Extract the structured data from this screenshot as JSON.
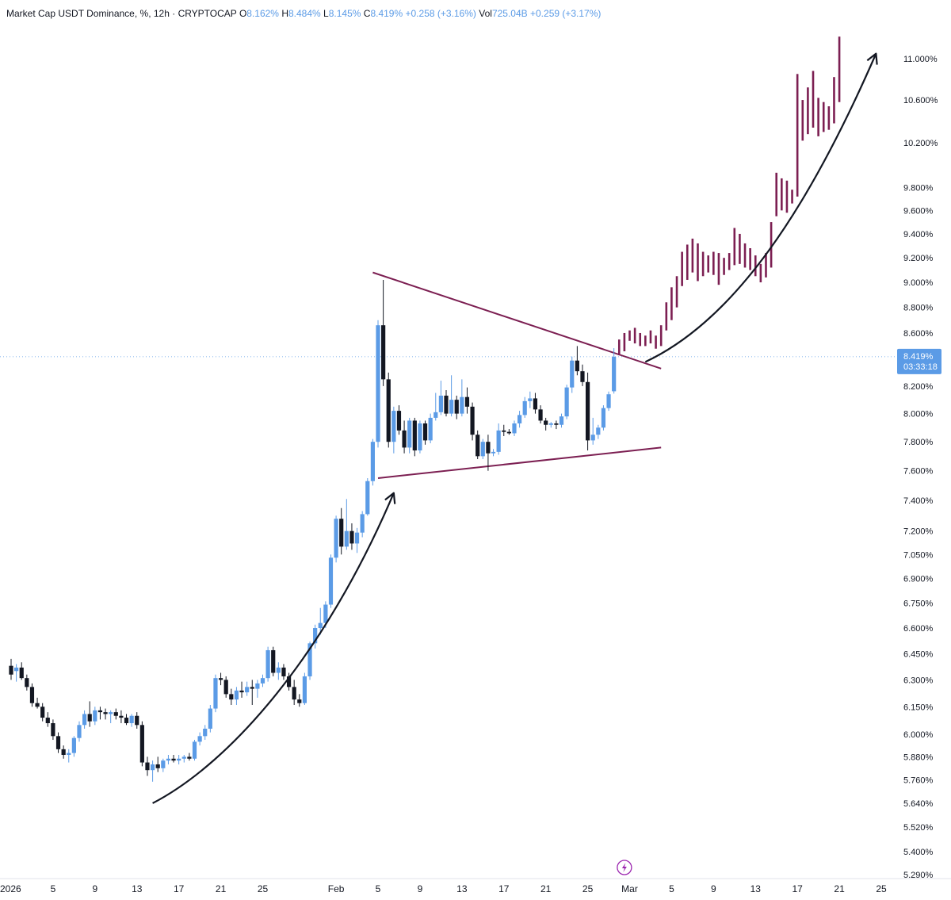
{
  "header": {
    "title": "Market Cap USDT Dominance, %",
    "interval": "12h",
    "source": "CRYPTOCAP",
    "o_label": "O",
    "o_value": "8.162%",
    "h_label": "H",
    "h_value": "8.484%",
    "l_label": "L",
    "l_value": "8.145%",
    "c_label": "C",
    "c_value": "8.419%",
    "change": "+0.258 (+3.16%)",
    "vol_label": "Vol",
    "vol_value": "725.04B",
    "vol_change": "+0.259 (+3.17%)"
  },
  "axis_unit": "%",
  "price_tag": {
    "value": "8.419%",
    "countdown": "03:33:18",
    "color": "#5b9be6"
  },
  "colors": {
    "up": "#5b9be6",
    "down": "#131722",
    "projection": "#7c1f52",
    "line": "#7c1f52",
    "arrow": "#131722"
  },
  "chart_data": {
    "type": "candlestick",
    "title": "Market Cap USDT Dominance, % · 12h · CRYPTOCAP",
    "scale": "log",
    "y_ticks": [
      "11.000%",
      "10.600%",
      "10.200%",
      "9.800%",
      "9.600%",
      "9.400%",
      "9.200%",
      "9.000%",
      "8.800%",
      "8.600%",
      "8.200%",
      "8.000%",
      "7.800%",
      "7.600%",
      "7.400%",
      "7.200%",
      "7.050%",
      "6.900%",
      "6.750%",
      "6.600%",
      "6.450%",
      "6.300%",
      "6.150%",
      "6.000%",
      "5.880%",
      "5.760%",
      "5.640%",
      "5.520%",
      "5.400%",
      "5.290%"
    ],
    "x_ticks": [
      {
        "label": "2026",
        "day": 1
      },
      {
        "label": "5",
        "day": 5
      },
      {
        "label": "9",
        "day": 9
      },
      {
        "label": "13",
        "day": 13
      },
      {
        "label": "17",
        "day": 17
      },
      {
        "label": "21",
        "day": 21
      },
      {
        "label": "25",
        "day": 25
      },
      {
        "label": "Feb",
        "day": 32
      },
      {
        "label": "5",
        "day": 36
      },
      {
        "label": "9",
        "day": 40
      },
      {
        "label": "13",
        "day": 44
      },
      {
        "label": "17",
        "day": 48
      },
      {
        "label": "21",
        "day": 52
      },
      {
        "label": "25",
        "day": 56
      },
      {
        "label": "Mar",
        "day": 60
      },
      {
        "label": "5",
        "day": 64
      },
      {
        "label": "9",
        "day": 68
      },
      {
        "label": "13",
        "day": 72
      },
      {
        "label": "17",
        "day": 76
      },
      {
        "label": "21",
        "day": 80
      },
      {
        "label": "25",
        "day": 84
      }
    ],
    "ylim": [
      5.25,
      11.5
    ],
    "xlim": [
      0.5,
      88
    ],
    "candles": [
      [
        1.0,
        6.38,
        6.42,
        6.3,
        6.33
      ],
      [
        1.5,
        6.35,
        6.39,
        6.29,
        6.37
      ],
      [
        2.0,
        6.37,
        6.4,
        6.3,
        6.31
      ],
      [
        2.5,
        6.31,
        6.33,
        6.24,
        6.26
      ],
      [
        3.0,
        6.26,
        6.28,
        6.15,
        6.17
      ],
      [
        3.5,
        6.17,
        6.2,
        6.14,
        6.15
      ],
      [
        4.0,
        6.15,
        6.17,
        6.07,
        6.09
      ],
      [
        4.5,
        6.09,
        6.12,
        6.04,
        6.06
      ],
      [
        5.0,
        6.06,
        6.08,
        5.97,
        5.99
      ],
      [
        5.5,
        5.99,
        6.01,
        5.9,
        5.92
      ],
      [
        6.0,
        5.92,
        5.94,
        5.87,
        5.89
      ],
      [
        6.5,
        5.89,
        5.92,
        5.85,
        5.9
      ],
      [
        7.0,
        5.9,
        5.99,
        5.88,
        5.98
      ],
      [
        7.5,
        5.98,
        6.07,
        5.96,
        6.05
      ],
      [
        8.0,
        6.05,
        6.13,
        6.03,
        6.11
      ],
      [
        8.5,
        6.11,
        6.18,
        6.04,
        6.07
      ],
      [
        9.0,
        6.07,
        6.15,
        6.05,
        6.13
      ],
      [
        9.5,
        6.13,
        6.15,
        6.08,
        6.12
      ],
      [
        10.0,
        6.12,
        6.14,
        6.08,
        6.11
      ],
      [
        10.5,
        6.11,
        6.13,
        6.06,
        6.12
      ],
      [
        11.0,
        6.12,
        6.14,
        6.08,
        6.1
      ],
      [
        11.5,
        6.1,
        6.13,
        6.06,
        6.09
      ],
      [
        12.0,
        6.09,
        6.11,
        6.05,
        6.06
      ],
      [
        12.5,
        6.06,
        6.11,
        6.04,
        6.1
      ],
      [
        13.0,
        6.1,
        6.12,
        6.03,
        6.05
      ],
      [
        13.5,
        6.05,
        6.07,
        5.83,
        5.85
      ],
      [
        14.0,
        5.85,
        5.88,
        5.78,
        5.81
      ],
      [
        14.5,
        5.81,
        5.86,
        5.75,
        5.84
      ],
      [
        15.0,
        5.84,
        5.88,
        5.8,
        5.82
      ],
      [
        15.5,
        5.82,
        5.87,
        5.8,
        5.86
      ],
      [
        16.0,
        5.86,
        5.89,
        5.84,
        5.87
      ],
      [
        16.5,
        5.87,
        5.89,
        5.85,
        5.86
      ],
      [
        17.0,
        5.86,
        5.89,
        5.84,
        5.87
      ],
      [
        17.5,
        5.87,
        5.89,
        5.85,
        5.88
      ],
      [
        18.0,
        5.88,
        5.9,
        5.86,
        5.87
      ],
      [
        18.5,
        5.87,
        5.97,
        5.86,
        5.96
      ],
      [
        19.0,
        5.96,
        6.01,
        5.94,
        5.99
      ],
      [
        19.5,
        5.99,
        6.05,
        5.97,
        6.03
      ],
      [
        20.0,
        6.03,
        6.16,
        6.01,
        6.14
      ],
      [
        20.5,
        6.14,
        6.33,
        6.12,
        6.31
      ],
      [
        21.0,
        6.31,
        6.34,
        6.27,
        6.3
      ],
      [
        21.5,
        6.3,
        6.32,
        6.2,
        6.22
      ],
      [
        22.0,
        6.22,
        6.25,
        6.16,
        6.19
      ],
      [
        22.5,
        6.19,
        6.26,
        6.16,
        6.24
      ],
      [
        23.0,
        6.24,
        6.29,
        6.2,
        6.23
      ],
      [
        23.5,
        6.23,
        6.29,
        6.21,
        6.26
      ],
      [
        24.0,
        6.26,
        6.3,
        6.16,
        6.25
      ],
      [
        24.5,
        6.25,
        6.3,
        6.2,
        6.28
      ],
      [
        25.0,
        6.28,
        6.33,
        6.26,
        6.31
      ],
      [
        25.5,
        6.31,
        6.49,
        6.29,
        6.47
      ],
      [
        26.0,
        6.47,
        6.49,
        6.32,
        6.34
      ],
      [
        26.5,
        6.34,
        6.4,
        6.3,
        6.37
      ],
      [
        27.0,
        6.37,
        6.39,
        6.3,
        6.32
      ],
      [
        27.5,
        6.32,
        6.34,
        6.24,
        6.26
      ],
      [
        28.0,
        6.26,
        6.3,
        6.16,
        6.19
      ],
      [
        28.5,
        6.19,
        6.22,
        6.15,
        6.17
      ],
      [
        29.0,
        6.17,
        6.34,
        6.16,
        6.32
      ],
      [
        29.5,
        6.32,
        6.52,
        6.3,
        6.51
      ],
      [
        30.0,
        6.51,
        6.62,
        6.48,
        6.6
      ],
      [
        30.5,
        6.6,
        6.72,
        6.56,
        6.63
      ],
      [
        31.0,
        6.63,
        6.76,
        6.6,
        6.74
      ],
      [
        31.5,
        6.74,
        7.05,
        6.72,
        7.03
      ],
      [
        32.0,
        7.03,
        7.3,
        7.0,
        7.28
      ],
      [
        32.5,
        7.28,
        7.35,
        7.05,
        7.1
      ],
      [
        33.0,
        7.1,
        7.41,
        7.08,
        7.2
      ],
      [
        33.5,
        7.2,
        7.25,
        7.08,
        7.12
      ],
      [
        34.0,
        7.12,
        7.22,
        7.06,
        7.19
      ],
      [
        34.5,
        7.19,
        7.33,
        7.16,
        7.31
      ],
      [
        35.0,
        7.31,
        7.55,
        7.3,
        7.53
      ],
      [
        35.5,
        7.53,
        7.82,
        7.5,
        7.8
      ],
      [
        36.0,
        7.8,
        8.7,
        7.76,
        8.66
      ],
      [
        36.5,
        8.66,
        9.02,
        8.2,
        8.25
      ],
      [
        37.0,
        8.25,
        8.3,
        7.76,
        7.8
      ],
      [
        37.5,
        7.8,
        8.05,
        7.72,
        8.02
      ],
      [
        38.0,
        8.02,
        8.06,
        7.85,
        7.88
      ],
      [
        38.5,
        7.88,
        7.95,
        7.72,
        7.76
      ],
      [
        39.0,
        7.76,
        7.97,
        7.72,
        7.95
      ],
      [
        39.5,
        7.95,
        7.97,
        7.7,
        7.74
      ],
      [
        40.0,
        7.74,
        7.95,
        7.72,
        7.93
      ],
      [
        40.5,
        7.93,
        7.95,
        7.78,
        7.81
      ],
      [
        41.0,
        7.81,
        8.0,
        7.79,
        7.97
      ],
      [
        41.5,
        7.97,
        8.15,
        7.95,
        8.01
      ],
      [
        42.0,
        8.01,
        8.24,
        7.99,
        8.13
      ],
      [
        42.5,
        8.13,
        8.17,
        7.98,
        8.0
      ],
      [
        43.0,
        8.0,
        8.28,
        7.98,
        8.1
      ],
      [
        43.5,
        8.1,
        8.13,
        7.96,
        8.0
      ],
      [
        44.0,
        8.0,
        8.25,
        7.98,
        8.12
      ],
      [
        44.5,
        8.12,
        8.19,
        8.0,
        8.05
      ],
      [
        45.0,
        8.05,
        8.08,
        7.81,
        7.85
      ],
      [
        45.5,
        7.85,
        7.88,
        7.68,
        7.7
      ],
      [
        46.0,
        7.7,
        7.82,
        7.68,
        7.8
      ],
      [
        46.5,
        7.8,
        7.85,
        7.6,
        7.72
      ],
      [
        47.0,
        7.72,
        7.75,
        7.7,
        7.73
      ],
      [
        47.5,
        7.73,
        7.93,
        7.71,
        7.88
      ],
      [
        48.0,
        7.88,
        7.92,
        7.84,
        7.87
      ],
      [
        48.5,
        7.87,
        7.89,
        7.85,
        7.86
      ],
      [
        49.0,
        7.86,
        7.95,
        7.84,
        7.93
      ],
      [
        49.5,
        7.93,
        8.02,
        7.9,
        7.99
      ],
      [
        50.0,
        7.99,
        8.12,
        7.97,
        8.09
      ],
      [
        50.5,
        8.09,
        8.16,
        8.04,
        8.11
      ],
      [
        51.0,
        8.11,
        8.15,
        8.0,
        8.03
      ],
      [
        51.5,
        8.03,
        8.06,
        7.93,
        7.95
      ],
      [
        52.0,
        7.95,
        7.97,
        7.88,
        7.92
      ],
      [
        52.5,
        7.92,
        7.94,
        7.9,
        7.93
      ],
      [
        53.0,
        7.93,
        7.95,
        7.89,
        7.92
      ],
      [
        53.5,
        7.92,
        8.0,
        7.9,
        7.98
      ],
      [
        54.0,
        7.98,
        8.21,
        7.96,
        8.19
      ],
      [
        54.5,
        8.19,
        8.42,
        8.15,
        8.39
      ],
      [
        55.0,
        8.39,
        8.5,
        8.28,
        8.31
      ],
      [
        55.5,
        8.31,
        8.36,
        8.2,
        8.23
      ],
      [
        56.0,
        8.23,
        8.3,
        7.74,
        7.81
      ],
      [
        56.5,
        7.81,
        7.97,
        7.78,
        7.85
      ],
      [
        57.0,
        7.85,
        7.92,
        7.82,
        7.9
      ],
      [
        57.5,
        7.9,
        8.06,
        7.88,
        8.04
      ],
      [
        58.0,
        8.04,
        8.16,
        8.02,
        8.14
      ],
      [
        58.5,
        8.162,
        8.484,
        8.145,
        8.419
      ]
    ],
    "projection_bars": [
      [
        59.0,
        8.43,
        8.55
      ],
      [
        59.5,
        8.46,
        8.6
      ],
      [
        60.0,
        8.54,
        8.62
      ],
      [
        60.5,
        8.52,
        8.64
      ],
      [
        61.0,
        8.5,
        8.6
      ],
      [
        61.5,
        8.5,
        8.58
      ],
      [
        62.0,
        8.52,
        8.62
      ],
      [
        62.5,
        8.48,
        8.58
      ],
      [
        63.0,
        8.5,
        8.66
      ],
      [
        63.5,
        8.62,
        8.84
      ],
      [
        64.0,
        8.7,
        8.96
      ],
      [
        64.5,
        8.8,
        9.05
      ],
      [
        65.0,
        8.97,
        9.25
      ],
      [
        65.5,
        9.02,
        9.31
      ],
      [
        66.0,
        9.08,
        9.36
      ],
      [
        66.5,
        9.01,
        9.32
      ],
      [
        67.0,
        9.05,
        9.25
      ],
      [
        67.5,
        9.08,
        9.22
      ],
      [
        68.0,
        9.06,
        9.25
      ],
      [
        68.5,
        8.98,
        9.24
      ],
      [
        69.0,
        9.06,
        9.2
      ],
      [
        69.5,
        9.1,
        9.24
      ],
      [
        70.0,
        9.14,
        9.45
      ],
      [
        70.5,
        9.15,
        9.4
      ],
      [
        71.0,
        9.12,
        9.32
      ],
      [
        71.5,
        9.1,
        9.28
      ],
      [
        72.0,
        9.05,
        9.22
      ],
      [
        72.5,
        9.0,
        9.15
      ],
      [
        73.0,
        9.04,
        9.24
      ],
      [
        73.5,
        9.12,
        9.5
      ],
      [
        74.0,
        9.55,
        9.93
      ],
      [
        74.5,
        9.6,
        9.88
      ],
      [
        75.0,
        9.58,
        9.86
      ],
      [
        75.5,
        9.66,
        9.78
      ],
      [
        76.0,
        9.72,
        10.85
      ],
      [
        76.5,
        10.22,
        10.6
      ],
      [
        77.0,
        10.28,
        10.72
      ],
      [
        77.5,
        10.34,
        10.88
      ],
      [
        78.0,
        10.26,
        10.62
      ],
      [
        78.5,
        10.3,
        10.58
      ],
      [
        79.0,
        10.32,
        10.54
      ],
      [
        79.5,
        10.38,
        10.82
      ],
      [
        80.0,
        10.58,
        11.22
      ]
    ],
    "trendlines": [
      {
        "name": "upper",
        "from": [
          35.5,
          9.08
        ],
        "to": [
          63.0,
          8.33
        ]
      },
      {
        "name": "lower",
        "from": [
          36.0,
          7.55
        ],
        "to": [
          63.0,
          7.76
        ]
      }
    ],
    "arrows": [
      {
        "name": "first-leg-arrow",
        "points": [
          [
            14.5,
            5.64
          ],
          [
            22,
            5.85
          ],
          [
            31,
            6.45
          ],
          [
            37.5,
            7.45
          ]
        ]
      },
      {
        "name": "projection-arrow",
        "points": [
          [
            61.5,
            8.38
          ],
          [
            70,
            8.7
          ],
          [
            77,
            9.6
          ],
          [
            83.5,
            11.05
          ]
        ]
      }
    ],
    "last_price": 8.419,
    "bolt_marker_day": 59.5
  }
}
